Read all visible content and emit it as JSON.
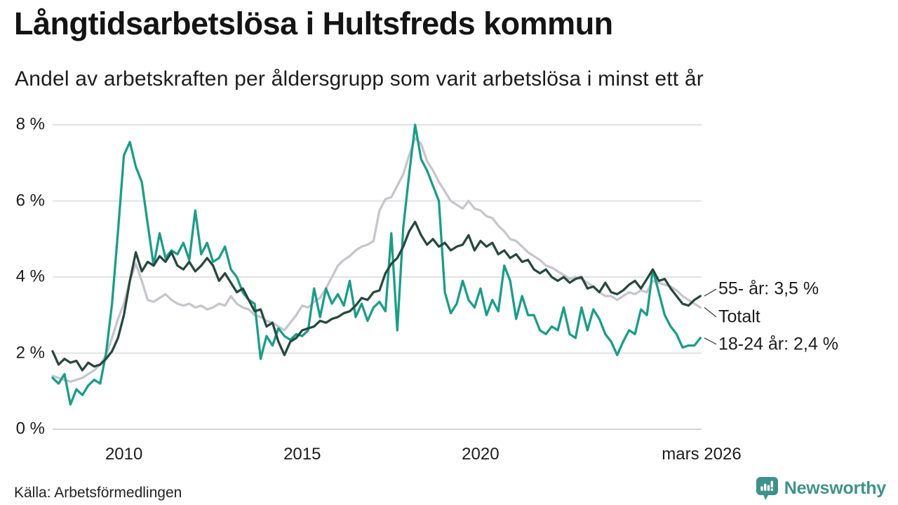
{
  "header": {
    "title": "Långtidsarbetslösa i Hultsfreds kommun",
    "subtitle": "Andel av arbetskraften per åldersgrupp som varit arbetslösa i minst ett år"
  },
  "footer": {
    "source": "Källa: Arbetsförmedlingen",
    "brand": "Newsworthy"
  },
  "colors": {
    "teal": "#1b9d88",
    "dark_green": "#27493e",
    "gray": "#c7c5ce",
    "grid": "#e2e2e2",
    "grid_zero": "#d4d4d4",
    "connector": "#3c3c3c",
    "brand_teal": "#3f928a",
    "text": "#1c1c1c"
  },
  "chart_data": {
    "type": "line",
    "title": "Långtidsarbetslösa i Hultsfreds kommun",
    "subtitle": "Andel av arbetskraften per åldersgrupp som varit arbetslösa i minst ett år",
    "x_unit": "year",
    "x_start": 2008.0,
    "x_step_years": 0.166667,
    "x_range": [
      2008.0,
      2026.2
    ],
    "ylim": [
      0,
      8
    ],
    "grid": true,
    "legend_position": "right-end-labels",
    "y_ticks": [
      {
        "value": 8,
        "label": "8 %"
      },
      {
        "value": 6,
        "label": "6 %"
      },
      {
        "value": 4,
        "label": "4 %"
      },
      {
        "value": 2,
        "label": "2 %"
      },
      {
        "value": 0,
        "label": "0 %"
      }
    ],
    "x_ticks": [
      {
        "value": 2010,
        "label": "2010"
      },
      {
        "value": 2015,
        "label": "2015"
      },
      {
        "value": 2020,
        "label": "2020"
      },
      {
        "value": 2026.2,
        "label": "mars 2026"
      }
    ],
    "series": [
      {
        "name": "Totalt",
        "end_label": "Totalt",
        "end_value_text": "",
        "color": "#c7c5ce",
        "values": [
          1.4,
          1.35,
          1.3,
          1.25,
          1.3,
          1.35,
          1.45,
          1.55,
          1.7,
          1.95,
          2.4,
          2.9,
          3.3,
          3.9,
          4.35,
          3.9,
          3.4,
          3.35,
          3.45,
          3.55,
          3.4,
          3.3,
          3.25,
          3.3,
          3.2,
          3.25,
          3.15,
          3.2,
          3.3,
          3.25,
          3.5,
          3.3,
          3.2,
          3.15,
          3.0,
          2.95,
          2.85,
          2.8,
          2.7,
          2.6,
          2.8,
          3.0,
          3.25,
          3.2,
          3.35,
          3.45,
          3.7,
          4.0,
          4.3,
          4.45,
          4.55,
          4.7,
          4.8,
          4.85,
          4.95,
          5.75,
          6.05,
          6.1,
          6.4,
          6.7,
          7.2,
          7.65,
          7.5,
          7.05,
          6.8,
          6.5,
          6.25,
          6.0,
          5.9,
          5.8,
          6.0,
          5.8,
          5.75,
          5.6,
          5.55,
          5.35,
          5.2,
          5.0,
          4.95,
          4.8,
          4.65,
          4.55,
          4.45,
          4.3,
          4.25,
          4.15,
          4.05,
          3.95,
          4.0,
          3.95,
          3.85,
          3.75,
          3.6,
          3.5,
          3.5,
          3.4,
          3.5,
          3.6,
          3.55,
          3.65,
          3.6,
          3.9,
          3.85,
          3.8,
          3.75,
          3.65,
          3.5,
          3.4,
          3.3,
          3.2
        ]
      },
      {
        "name": "18-24 år",
        "end_label": "18-24 år: 2,4 %",
        "end_value_text": "2,4 %",
        "color": "#1b9d88",
        "values": [
          1.35,
          1.2,
          1.45,
          0.65,
          1.05,
          0.9,
          1.15,
          1.3,
          1.2,
          2.0,
          3.3,
          5.2,
          7.2,
          7.55,
          6.9,
          6.5,
          5.4,
          4.3,
          5.15,
          4.5,
          4.7,
          4.6,
          4.9,
          4.45,
          5.75,
          4.6,
          4.9,
          4.4,
          4.5,
          4.8,
          4.2,
          4.0,
          3.6,
          3.4,
          3.3,
          1.85,
          2.45,
          2.2,
          2.65,
          2.45,
          2.35,
          2.5,
          2.45,
          2.6,
          3.7,
          2.95,
          3.7,
          3.3,
          3.55,
          3.25,
          3.9,
          2.95,
          3.3,
          2.85,
          3.2,
          3.35,
          3.1,
          5.15,
          2.6,
          5.3,
          6.7,
          8.0,
          7.1,
          6.8,
          6.4,
          6.0,
          3.6,
          3.05,
          3.3,
          3.9,
          3.4,
          3.2,
          3.7,
          3.0,
          3.4,
          3.1,
          4.3,
          3.9,
          2.9,
          3.5,
          3.0,
          3.0,
          2.6,
          2.5,
          2.7,
          2.6,
          3.2,
          2.5,
          2.4,
          3.2,
          2.6,
          3.15,
          2.9,
          2.5,
          2.3,
          1.95,
          2.3,
          2.6,
          2.5,
          3.15,
          3.0,
          4.2,
          3.6,
          3.0,
          2.7,
          2.5,
          2.15,
          2.2,
          2.2,
          2.4
        ]
      },
      {
        "name": "55- år",
        "end_label": "55- år: 3,5 %",
        "end_value_text": "3,5 %",
        "color": "#27493e",
        "values": [
          2.05,
          1.7,
          1.85,
          1.75,
          1.8,
          1.55,
          1.75,
          1.65,
          1.7,
          1.85,
          2.05,
          2.4,
          3.0,
          3.9,
          4.65,
          4.15,
          4.4,
          4.3,
          4.55,
          4.4,
          4.65,
          4.3,
          4.2,
          4.4,
          4.15,
          4.3,
          4.5,
          4.3,
          3.9,
          4.1,
          3.85,
          3.6,
          3.7,
          3.4,
          3.1,
          3.15,
          2.7,
          2.8,
          2.3,
          1.95,
          2.3,
          2.4,
          2.6,
          2.65,
          2.7,
          2.85,
          2.8,
          2.9,
          2.95,
          3.05,
          3.1,
          3.25,
          3.45,
          3.4,
          3.6,
          3.65,
          4.1,
          4.35,
          4.5,
          4.8,
          5.2,
          5.45,
          5.1,
          4.85,
          5.0,
          4.8,
          4.9,
          4.7,
          4.8,
          4.85,
          5.1,
          4.7,
          4.95,
          4.8,
          4.9,
          4.6,
          4.7,
          4.5,
          4.6,
          4.4,
          4.45,
          4.2,
          4.1,
          4.2,
          4.0,
          3.9,
          4.0,
          3.85,
          3.95,
          4.0,
          3.7,
          3.75,
          3.6,
          3.85,
          3.6,
          3.55,
          3.65,
          3.8,
          3.9,
          3.7,
          3.95,
          4.2,
          3.9,
          3.95,
          3.7,
          3.5,
          3.3,
          3.25,
          3.4,
          3.5
        ]
      }
    ]
  }
}
